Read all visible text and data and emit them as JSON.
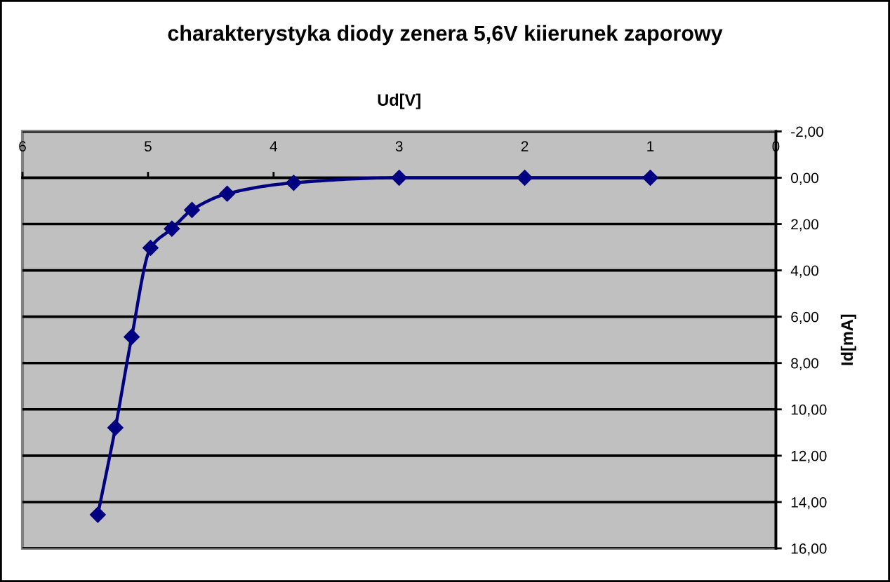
{
  "chart_data": {
    "type": "line",
    "title": "charakterystyka diody zenera 5,6V kiierunek zaporowy",
    "xlabel": "Ud[V]",
    "ylabel": "Id[mA]",
    "x": [
      1,
      2,
      3,
      3.84,
      4.37,
      4.65,
      4.81,
      4.98,
      5.13,
      5.26,
      5.4
    ],
    "values": [
      0,
      0,
      0,
      0.22,
      0.69,
      1.39,
      2.2,
      3.03,
      6.87,
      10.79,
      14.55
    ],
    "color": "#000080",
    "marker": "diamond",
    "line_style": "solid",
    "grid": "y",
    "xlim": [
      6,
      0
    ],
    "xticks": [
      6,
      5,
      4,
      3,
      2,
      1,
      0
    ],
    "ylim": [
      16,
      -2
    ],
    "yticks": [
      {
        "value": -2,
        "label": "-2,00"
      },
      {
        "value": 0,
        "label": "0,00"
      },
      {
        "value": 2,
        "label": "2,00"
      },
      {
        "value": 4,
        "label": "4,00"
      },
      {
        "value": 6,
        "label": "6,00"
      },
      {
        "value": 8,
        "label": "8,00"
      },
      {
        "value": 10,
        "label": "10,00"
      },
      {
        "value": 12,
        "label": "12,00"
      },
      {
        "value": 14,
        "label": "14,00"
      },
      {
        "value": 16,
        "label": "16,00"
      }
    ]
  }
}
